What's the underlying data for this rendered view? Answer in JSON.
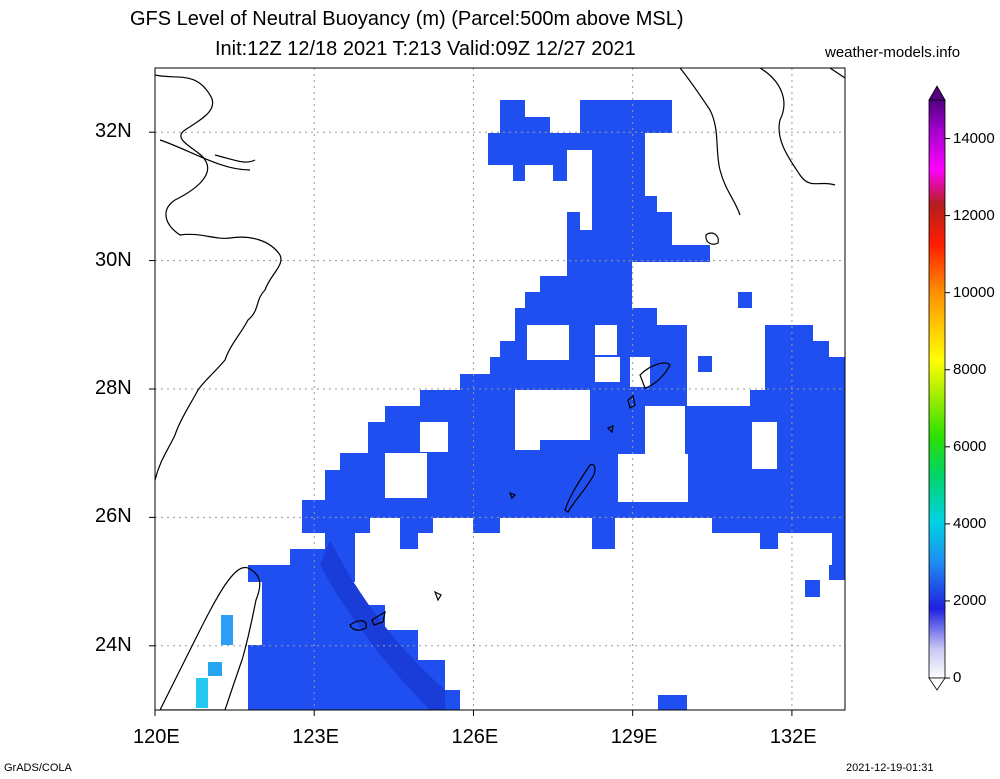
{
  "title": {
    "line1": "GFS Level of Neutral Buoyancy (m) (Parcel:500m above MSL)",
    "line2": "Init:12Z 12/18 2021 T:213 Valid:09Z 12/27 2021"
  },
  "source": "weather-models.info",
  "footer": {
    "left": "GrADS/COLA",
    "right": "2021-12-19-01:31"
  },
  "map": {
    "lon_range": [
      120,
      133
    ],
    "lat_range": [
      23,
      33
    ],
    "lon_ticks": [
      {
        "v": 120,
        "label": "120E"
      },
      {
        "v": 123,
        "label": "123E"
      },
      {
        "v": 126,
        "label": "126E"
      },
      {
        "v": 129,
        "label": "129E"
      },
      {
        "v": 132,
        "label": "132E"
      }
    ],
    "lat_ticks": [
      {
        "v": 24,
        "label": "24N"
      },
      {
        "v": 26,
        "label": "26N"
      },
      {
        "v": 28,
        "label": "28N"
      },
      {
        "v": 30,
        "label": "30N"
      },
      {
        "v": 32,
        "label": "32N"
      }
    ],
    "grid": true,
    "field_color": "#1f4ff0",
    "field_dark_color": "#1a3cd8",
    "coast_color": "#000000"
  },
  "colorbar": {
    "range": [
      0,
      15000
    ],
    "labels": [
      "0",
      "2000",
      "4000",
      "6000",
      "8000",
      "10000",
      "12000",
      "14000"
    ],
    "label_values": [
      0,
      2000,
      4000,
      6000,
      8000,
      10000,
      12000,
      14000
    ]
  }
}
